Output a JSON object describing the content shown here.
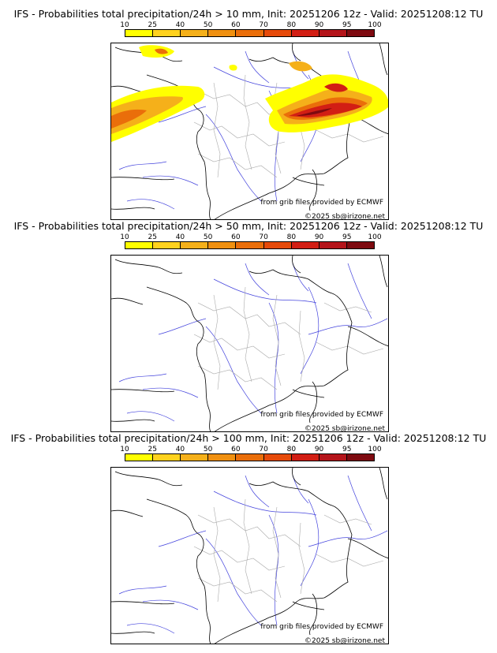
{
  "colorbar": {
    "ticks": [
      "10",
      "25",
      "40",
      "50",
      "60",
      "70",
      "80",
      "90",
      "95",
      "100"
    ],
    "colors": [
      "#ffff00",
      "#ffd21e",
      "#f5b01a",
      "#f09010",
      "#ea6e0a",
      "#e64a0a",
      "#d21e14",
      "#b4141a",
      "#7e0a10"
    ]
  },
  "panels": [
    {
      "title": "IFS - Probabilities total precipitation/24h > 10 mm, Init: 20251206 12z - Valid: 20251208:12 TU",
      "credit": "from grib files provided by ECMWF",
      "copyright": "©2025 sb@irizone.net"
    },
    {
      "title": "IFS - Probabilities total precipitation/24h > 50 mm, Init: 20251206 12z - Valid: 20251208:12 TU",
      "credit": "from grib files provided by ECMWF",
      "copyright": "©2025 sb@irizone.net"
    },
    {
      "title": "IFS - Probabilities total precipitation/24h > 100 mm, Init: 20251206 12z - Valid: 20251208:12 TU",
      "credit": "from grib files provided by ECMWF",
      "copyright": "©2025 sb@irizone.net"
    }
  ]
}
